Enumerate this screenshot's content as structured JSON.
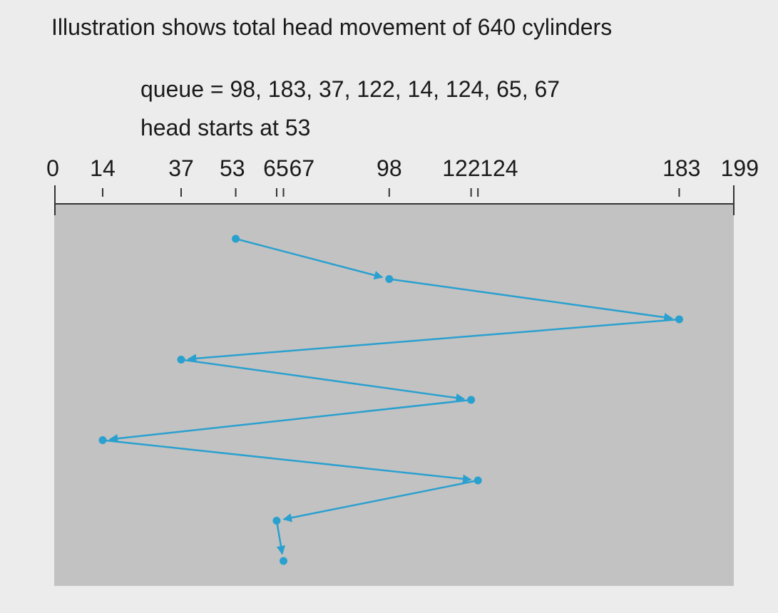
{
  "title": "Illustration shows total head movement of 640 cylinders",
  "queue_text": "queue = 98, 183, 37, 122, 14, 124, 65, 67",
  "head_text": "head starts at 53",
  "axis": {
    "min": 0,
    "max": 199,
    "tick_labels": [
      "0",
      "14",
      "37",
      "53",
      "65",
      "67",
      "98",
      "122",
      "124",
      "183",
      "199"
    ],
    "tick_values": [
      0,
      14,
      37,
      53,
      65,
      67,
      98,
      122,
      124,
      183,
      199
    ]
  },
  "path": {
    "start": 53,
    "sequence": [
      53,
      98,
      183,
      37,
      122,
      14,
      124,
      65,
      67
    ]
  },
  "colors": {
    "background": "#ececec",
    "panel": "#c2c2c2",
    "path": "#2aa0cf",
    "axis": "#333333"
  }
}
